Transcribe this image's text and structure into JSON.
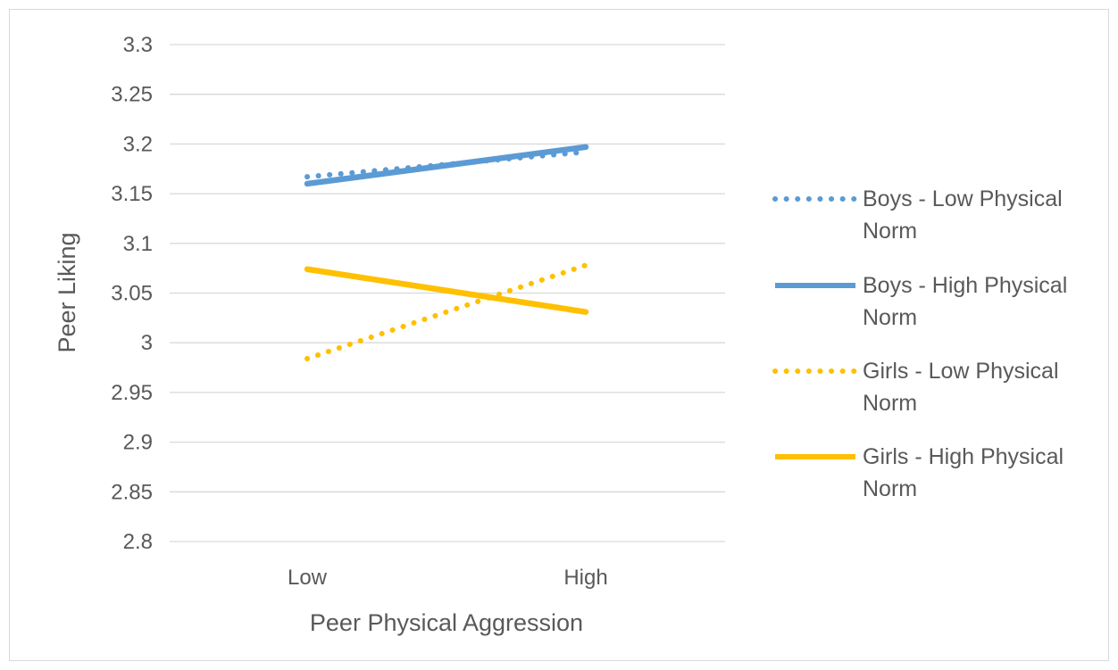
{
  "chart_data": {
    "type": "line",
    "title": "",
    "xlabel": "Peer Physical Aggression",
    "ylabel": "Peer Liking",
    "categories": [
      "Low",
      "High"
    ],
    "ylim": [
      2.8,
      3.3
    ],
    "ytick_step": 0.05,
    "yticks": [
      "2.8",
      "2.85",
      "2.9",
      "2.95",
      "3",
      "3.05",
      "3.1",
      "3.15",
      "3.2",
      "3.25",
      "3.3"
    ],
    "grid": true,
    "legend_position": "right",
    "series": [
      {
        "name": "Boys - Low Physical Norm",
        "name_lines": [
          "Boys - Low Physical",
          "Norm"
        ],
        "values": [
          3.167,
          3.192
        ],
        "color": "#5B9BD5",
        "style": "dotted"
      },
      {
        "name": "Boys - High Physical Norm",
        "name_lines": [
          "Boys - High Physical",
          "Norm"
        ],
        "values": [
          3.16,
          3.197
        ],
        "color": "#5B9BD5",
        "style": "solid"
      },
      {
        "name": "Girls - Low Physical Norm",
        "name_lines": [
          "Girls - Low Physical",
          "Norm"
        ],
        "values": [
          2.984,
          3.078
        ],
        "color": "#FFC000",
        "style": "dotted"
      },
      {
        "name": "Girls - High Physical Norm",
        "name_lines": [
          "Girls - High Physical",
          "Norm"
        ],
        "values": [
          3.074,
          3.031
        ],
        "color": "#FFC000",
        "style": "solid"
      }
    ]
  }
}
